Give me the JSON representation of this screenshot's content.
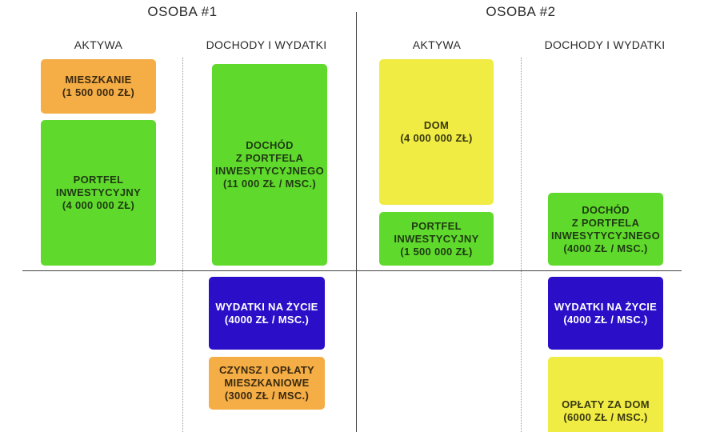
{
  "persons": [
    {
      "title": "OSOBA #1"
    },
    {
      "title": "OSOBA #2"
    }
  ],
  "columns": {
    "assets": "AKTYWA",
    "income_expenses": "DOCHODY I WYDATKI"
  },
  "colors": {
    "orange": "#f5ad46",
    "green": "#5fda2c",
    "yellow": "#f0ec43",
    "blue": "#2b0ec8"
  },
  "boxes": {
    "p1_apartment": {
      "lines": [
        "MIESZKANIE",
        "(1 500 000 ZŁ)"
      ]
    },
    "p1_portfolio": {
      "lines": [
        "PORTFEL",
        "INWESTYCYJNY",
        "(4 000 000 ZŁ)"
      ]
    },
    "p1_income": {
      "lines": [
        "DOCHÓD",
        "Z PORTFELA",
        "INWESYTYCYJNEGO",
        "(11 000 ZŁ / MSC.)"
      ]
    },
    "p1_living": {
      "lines": [
        "WYDATKI NA ŻYCIE",
        "(4000 ZŁ / MSC.)"
      ]
    },
    "p1_rent": {
      "lines": [
        "CZYNSZ I OPŁATY",
        "MIESZKANIOWE",
        "(3000 ZŁ / MSC.)"
      ]
    },
    "p2_house": {
      "lines": [
        "DOM",
        "(4 000 000 ZŁ)"
      ]
    },
    "p2_portfolio": {
      "lines": [
        "PORTFEL",
        "INWESTYCYJNY",
        "(1 500 000 ZŁ)"
      ]
    },
    "p2_income": {
      "lines": [
        "DOCHÓD",
        "Z PORTFELA",
        "INWESYTYCYJNEGO",
        "(4000 ZŁ / MSC.)"
      ]
    },
    "p2_living": {
      "lines": [
        "WYDATKI NA ŻYCIE",
        "(4000 ZŁ / MSC.)"
      ]
    },
    "p2_house_fees": {
      "lines": [
        "OPŁATY ZA DOM",
        "(6000 ZŁ / MSC.)"
      ]
    }
  }
}
